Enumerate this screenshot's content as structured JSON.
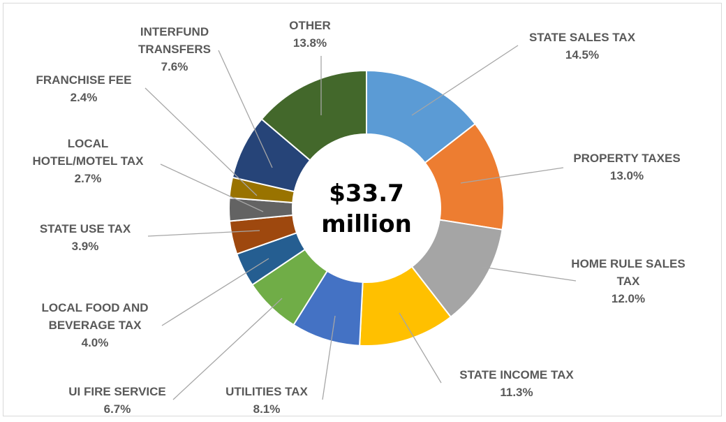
{
  "chart_data": {
    "type": "pie",
    "center_label": [
      "$33.7",
      "million"
    ],
    "series": [
      {
        "name": "STATE SALES TAX",
        "label_lines": [
          "STATE SALES TAX"
        ],
        "value_label": "14.5%",
        "value": 14.5,
        "color": "#5b9bd5"
      },
      {
        "name": "PROPERTY TAXES",
        "label_lines": [
          "PROPERTY TAXES"
        ],
        "value_label": "13.0%",
        "value": 13.0,
        "color": "#ed7d31"
      },
      {
        "name": "HOME RULE SALES TAX",
        "label_lines": [
          "HOME RULE SALES",
          "TAX"
        ],
        "value_label": "12.0%",
        "value": 12.0,
        "color": "#a5a5a5"
      },
      {
        "name": "STATE INCOME TAX",
        "label_lines": [
          "STATE INCOME TAX"
        ],
        "value_label": "11.3%",
        "value": 11.3,
        "color": "#ffc000"
      },
      {
        "name": "UTILITIES TAX",
        "label_lines": [
          "UTILITIES TAX"
        ],
        "value_label": "8.1%",
        "value": 8.1,
        "color": "#4472c4"
      },
      {
        "name": "UI FIRE SERVICE",
        "label_lines": [
          "UI FIRE SERVICE"
        ],
        "value_label": "6.7%",
        "value": 6.7,
        "color": "#70ad47"
      },
      {
        "name": "LOCAL FOOD AND BEVERAGE TAX",
        "label_lines": [
          "LOCAL FOOD AND",
          "BEVERAGE TAX"
        ],
        "value_label": "4.0%",
        "value": 4.0,
        "color": "#255e91"
      },
      {
        "name": "STATE USE TAX",
        "label_lines": [
          "STATE USE TAX"
        ],
        "value_label": "3.9%",
        "value": 3.9,
        "color": "#9e480e"
      },
      {
        "name": "LOCAL HOTEL/MOTEL TAX",
        "label_lines": [
          "LOCAL",
          "HOTEL/MOTEL TAX"
        ],
        "value_label": "2.7%",
        "value": 2.7,
        "color": "#636363"
      },
      {
        "name": "FRANCHISE FEE",
        "label_lines": [
          "FRANCHISE FEE"
        ],
        "value_label": "2.4%",
        "value": 2.4,
        "color": "#997300"
      },
      {
        "name": "INTERFUND TRANSFERS",
        "label_lines": [
          "INTERFUND",
          "TRANSFERS"
        ],
        "value_label": "7.6%",
        "value": 7.6,
        "color": "#264478"
      },
      {
        "name": "OTHER",
        "label_lines": [
          "OTHER"
        ],
        "value_label": "13.8%",
        "value": 13.8,
        "color": "#43682b"
      }
    ]
  }
}
